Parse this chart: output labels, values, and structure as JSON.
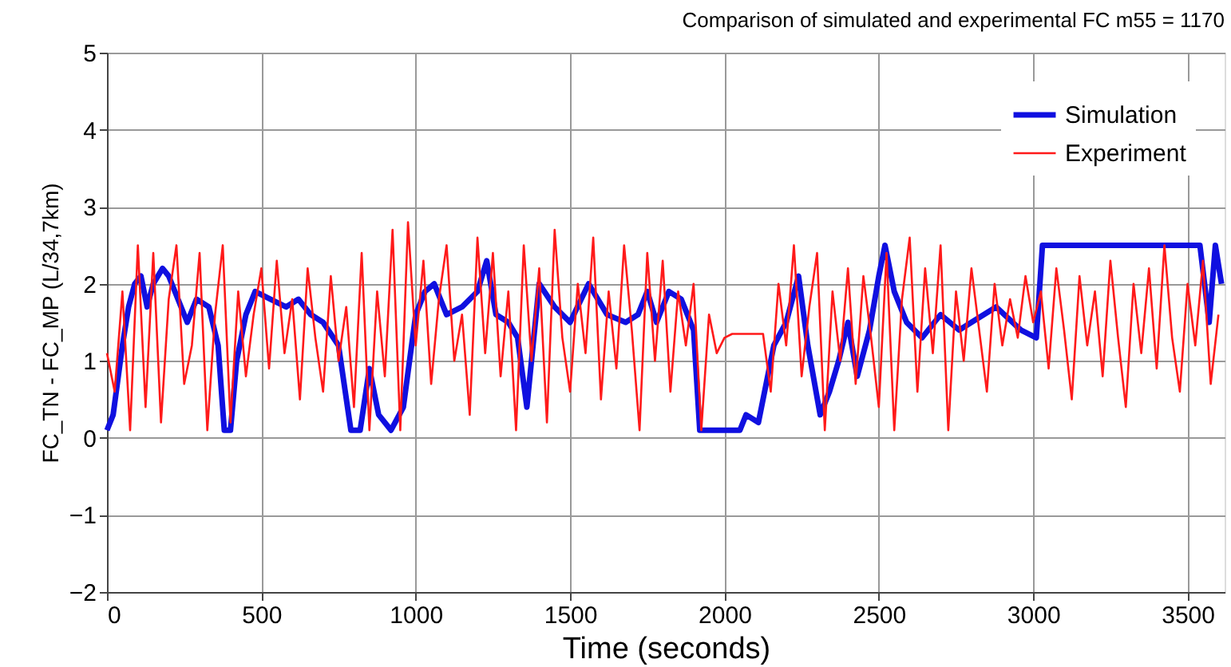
{
  "chart_data": {
    "type": "line",
    "title": "Comparison of simulated and experimental FC m55 = 1170",
    "xlabel": "Time (seconds)",
    "ylabel": "FC_TN - FC_MP (L/34,7km)",
    "xlim": [
      0,
      3620
    ],
    "xticks": [
      0,
      500,
      1000,
      1500,
      2000,
      2500,
      3000,
      3500
    ],
    "ylim": [
      -2,
      5
    ],
    "yticks": [
      -2,
      -1,
      0,
      1,
      2,
      3,
      4,
      5
    ],
    "grid": true,
    "legend": "top right",
    "line_style": "solid",
    "marker": "none",
    "series": [
      {
        "name": "Simulation",
        "color": "#1010e0",
        "x": [
          0,
          20,
          50,
          70,
          90,
          110,
          130,
          150,
          180,
          200,
          230,
          260,
          290,
          330,
          360,
          380,
          400,
          420,
          450,
          480,
          530,
          580,
          620,
          660,
          700,
          750,
          790,
          820,
          850,
          880,
          920,
          960,
          1000,
          1030,
          1060,
          1100,
          1150,
          1200,
          1230,
          1260,
          1300,
          1330,
          1360,
          1400,
          1450,
          1500,
          1560,
          1620,
          1680,
          1720,
          1750,
          1780,
          1820,
          1860,
          1900,
          1920,
          2050,
          2070,
          2110,
          2130,
          2160,
          2200,
          2240,
          2270,
          2310,
          2340,
          2370,
          2400,
          2430,
          2470,
          2500,
          2520,
          2550,
          2590,
          2640,
          2700,
          2760,
          2800,
          2880,
          2960,
          3010,
          3030,
          3100,
          3200,
          3300,
          3400,
          3540,
          3570,
          3590,
          3610
        ],
        "values": [
          0.1,
          0.3,
          1.2,
          1.7,
          2.0,
          2.1,
          1.7,
          2.0,
          2.2,
          2.1,
          1.8,
          1.5,
          1.8,
          1.7,
          1.2,
          0.1,
          0.1,
          1.0,
          1.6,
          1.9,
          1.8,
          1.7,
          1.8,
          1.6,
          1.5,
          1.2,
          0.1,
          0.1,
          0.9,
          0.3,
          0.1,
          0.4,
          1.6,
          1.9,
          2.0,
          1.6,
          1.7,
          1.9,
          2.3,
          1.6,
          1.5,
          1.3,
          0.4,
          2.0,
          1.7,
          1.5,
          2.0,
          1.6,
          1.5,
          1.6,
          1.9,
          1.5,
          1.9,
          1.8,
          1.4,
          0.1,
          0.1,
          0.3,
          0.2,
          0.6,
          1.2,
          1.5,
          2.1,
          1.2,
          0.3,
          0.6,
          1.0,
          1.5,
          0.8,
          1.4,
          2.1,
          2.5,
          1.9,
          1.5,
          1.3,
          1.6,
          1.4,
          1.5,
          1.7,
          1.4,
          1.3,
          2.5,
          2.5,
          2.5,
          2.5,
          2.5,
          2.5,
          1.5,
          2.5,
          2.0
        ]
      },
      {
        "name": "Experiment",
        "color": "#ff1a1a",
        "x": [
          0,
          25,
          50,
          75,
          100,
          125,
          150,
          175,
          200,
          225,
          250,
          275,
          300,
          325,
          350,
          375,
          400,
          425,
          450,
          475,
          500,
          525,
          550,
          575,
          600,
          625,
          650,
          675,
          700,
          725,
          750,
          775,
          800,
          825,
          850,
          875,
          900,
          925,
          950,
          975,
          1000,
          1025,
          1050,
          1075,
          1100,
          1125,
          1150,
          1175,
          1200,
          1225,
          1250,
          1275,
          1300,
          1325,
          1350,
          1375,
          1400,
          1425,
          1450,
          1475,
          1500,
          1525,
          1550,
          1575,
          1600,
          1625,
          1650,
          1675,
          1700,
          1725,
          1750,
          1775,
          1800,
          1825,
          1850,
          1875,
          1900,
          1925,
          1950,
          1975,
          2000,
          2025,
          2050,
          2075,
          2100,
          2125,
          2150,
          2175,
          2200,
          2225,
          2250,
          2275,
          2300,
          2325,
          2350,
          2375,
          2400,
          2425,
          2450,
          2475,
          2500,
          2525,
          2550,
          2575,
          2600,
          2625,
          2650,
          2675,
          2700,
          2725,
          2750,
          2775,
          2800,
          2825,
          2850,
          2875,
          2900,
          2925,
          2950,
          2975,
          3000,
          3025,
          3050,
          3075,
          3100,
          3125,
          3150,
          3175,
          3200,
          3225,
          3250,
          3275,
          3300,
          3325,
          3350,
          3375,
          3400,
          3425,
          3450,
          3475,
          3500,
          3525,
          3550,
          3575,
          3600
        ],
        "values": [
          1.1,
          0.6,
          1.9,
          0.1,
          2.5,
          0.4,
          2.4,
          0.2,
          1.8,
          2.5,
          0.7,
          1.2,
          2.4,
          0.1,
          1.6,
          2.5,
          0.2,
          1.9,
          0.8,
          1.6,
          2.2,
          0.9,
          2.3,
          1.1,
          1.8,
          0.5,
          2.2,
          1.3,
          0.6,
          2.1,
          1.0,
          1.7,
          0.4,
          2.4,
          0.1,
          1.9,
          0.8,
          2.7,
          0.1,
          2.8,
          1.2,
          2.3,
          0.7,
          1.8,
          2.5,
          1.0,
          1.6,
          0.3,
          2.6,
          1.1,
          2.4,
          0.8,
          1.9,
          0.1,
          2.5,
          1.0,
          2.2,
          0.2,
          2.7,
          1.3,
          0.6,
          2.0,
          1.1,
          2.6,
          0.5,
          1.9,
          0.9,
          2.5,
          1.4,
          0.1,
          2.4,
          1.0,
          2.3,
          0.6,
          1.9,
          1.2,
          2.0,
          0.1,
          1.6,
          1.1,
          1.3,
          1.35,
          1.35,
          1.35,
          1.35,
          1.35,
          0.6,
          2.0,
          1.2,
          2.5,
          0.8,
          1.7,
          2.4,
          0.1,
          1.9,
          1.0,
          2.2,
          0.7,
          2.1,
          1.3,
          0.4,
          2.4,
          0.1,
          1.8,
          2.6,
          0.6,
          2.2,
          1.1,
          2.5,
          0.1,
          1.9,
          1.0,
          2.2,
          1.4,
          0.6,
          2.0,
          1.2,
          1.8,
          1.3,
          2.1,
          1.5,
          1.9,
          0.9,
          2.2,
          1.4,
          0.5,
          2.1,
          1.2,
          1.9,
          0.8,
          2.3,
          1.3,
          0.4,
          2.0,
          1.1,
          2.2,
          0.9,
          2.5,
          1.3,
          0.6,
          2.0,
          1.2,
          2.3,
          0.7,
          1.6
        ]
      }
    ]
  }
}
